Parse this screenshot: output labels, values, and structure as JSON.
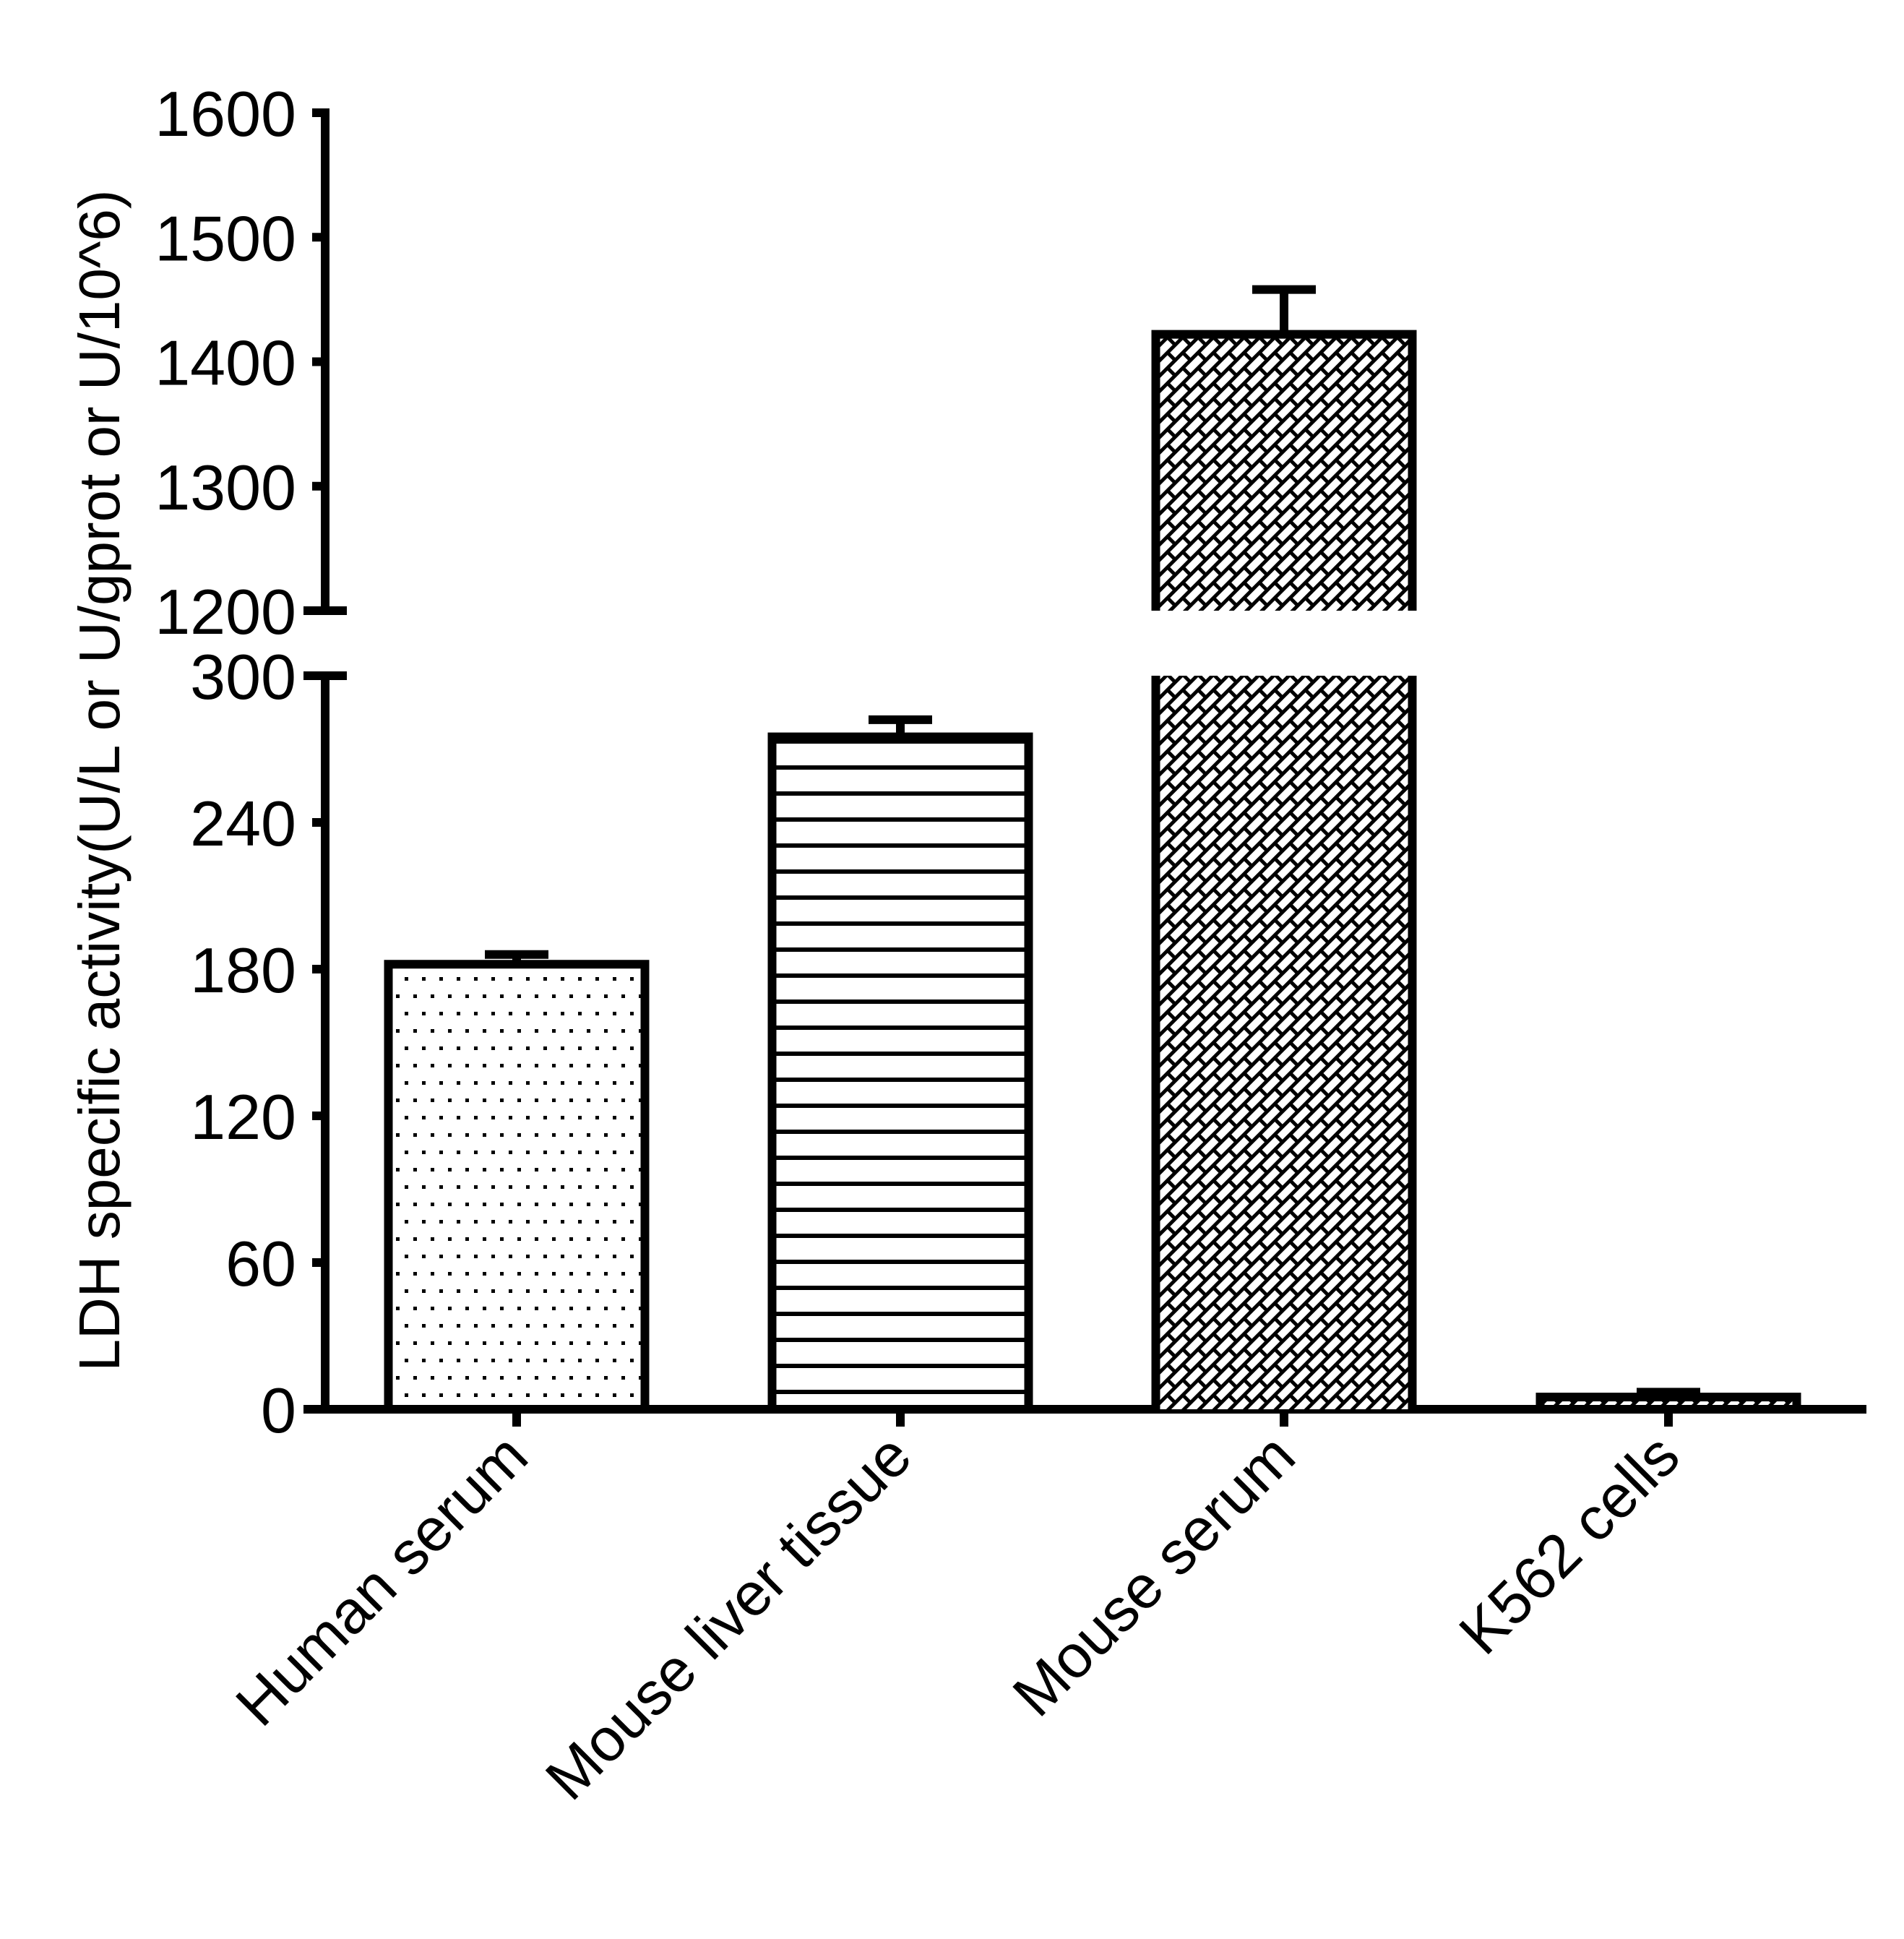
{
  "chart_data": {
    "type": "bar",
    "title": "",
    "xlabel": "",
    "ylabel": "LDH specific activity(U/L or U/gprot or U/10^6)",
    "categories": [
      "Human serum",
      "Mouse liver tissue",
      "Mouse serum",
      "K562 cells"
    ],
    "values": [
      182,
      275,
      1422,
      5
    ],
    "error_upper": [
      186,
      282,
      1458,
      7
    ],
    "patterns": [
      "dots",
      "horizontal-lines",
      "diagonal-brick",
      "diagonal-brick"
    ],
    "y_axis_broken": true,
    "segments": [
      {
        "range": [
          0,
          300
        ],
        "ticks": [
          0,
          60,
          120,
          180,
          240,
          300
        ]
      },
      {
        "range": [
          1200,
          1600
        ],
        "ticks": [
          1200,
          1300,
          1400,
          1500,
          1600
        ]
      }
    ],
    "ylim": [
      0,
      1600
    ],
    "grid": false,
    "legend": null,
    "colors": {
      "fill": "#ffffff",
      "stroke": "#000000",
      "background": "#ffffff"
    }
  }
}
